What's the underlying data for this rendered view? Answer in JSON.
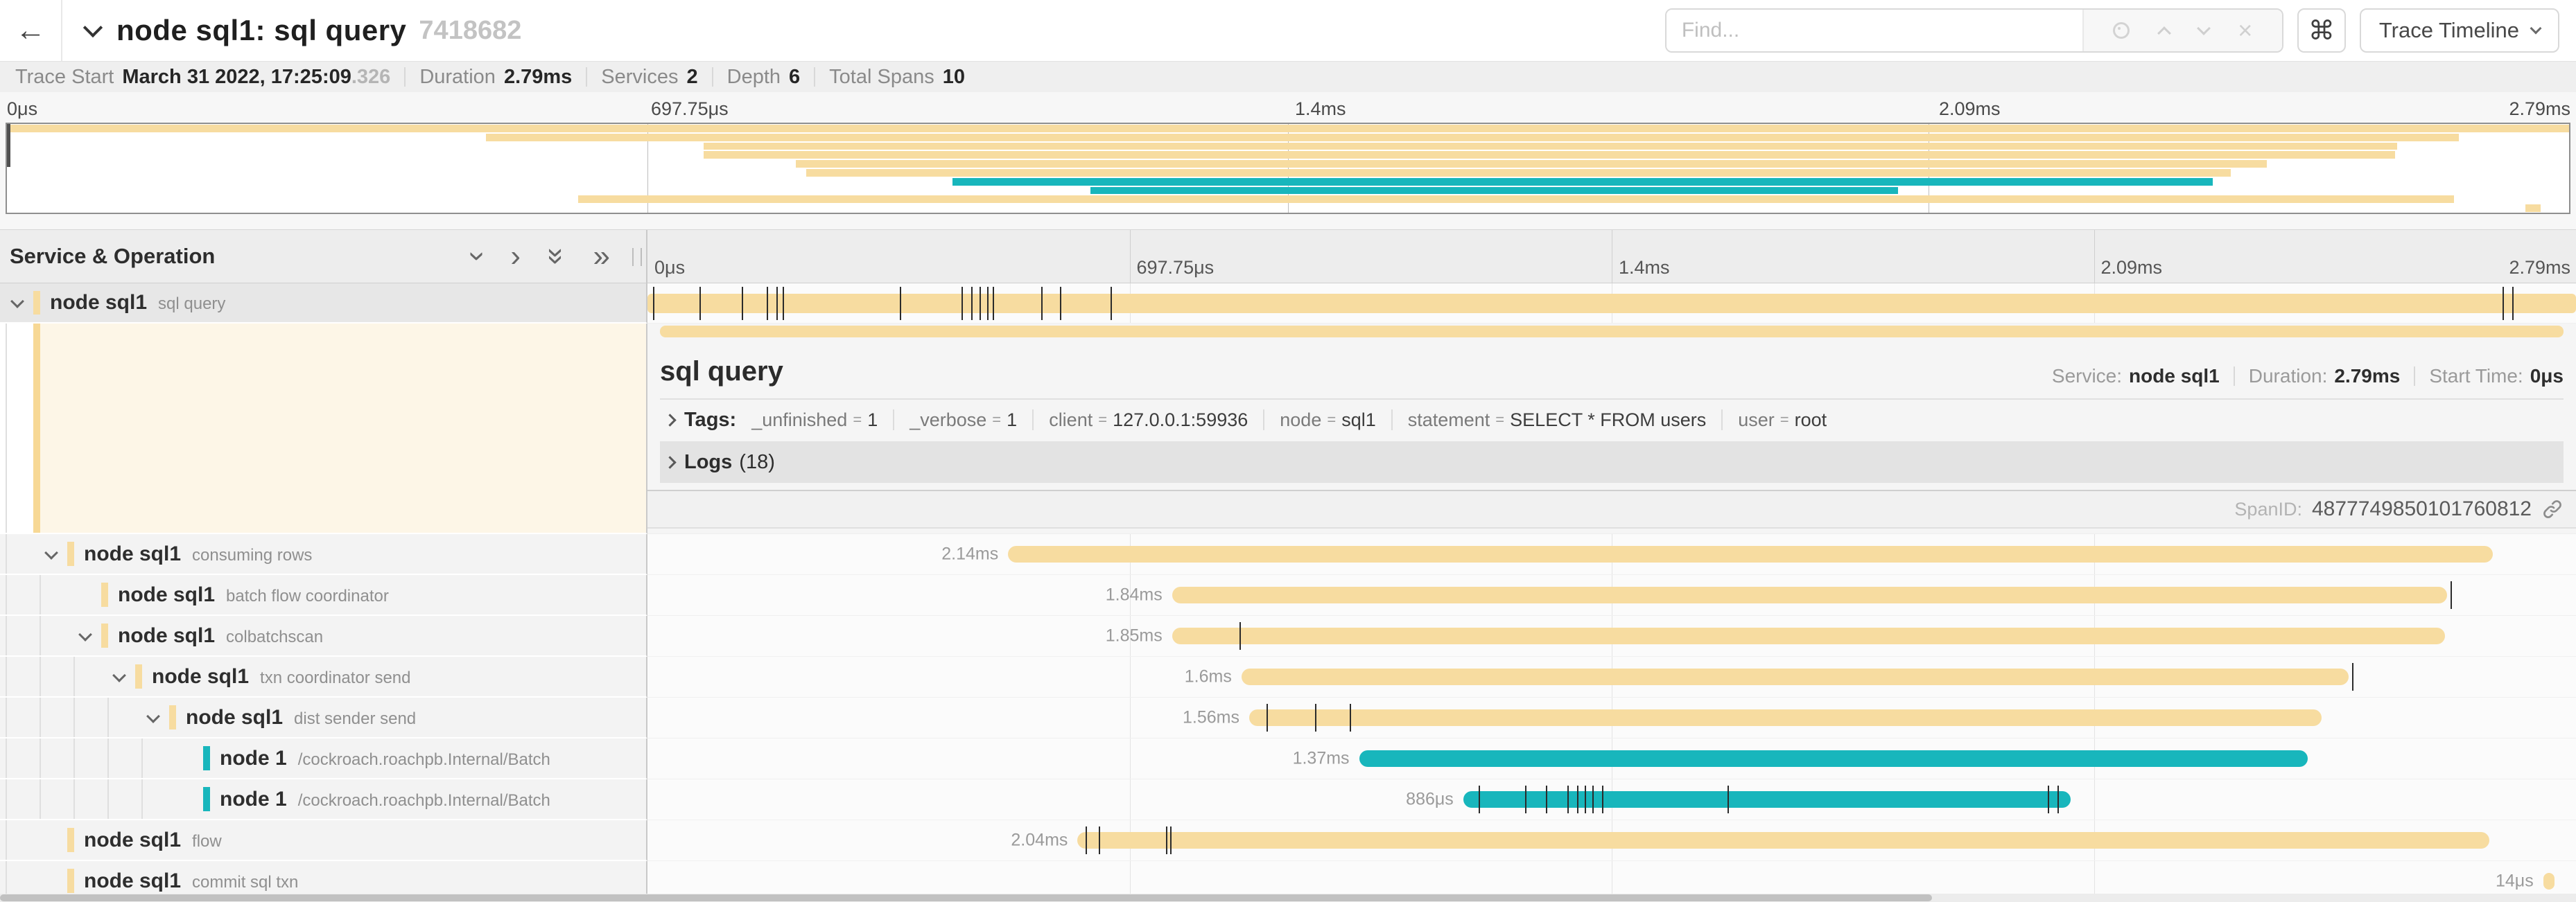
{
  "colors": {
    "yellow": "#F7DCA0",
    "teal": "#18B6BC",
    "accent": "#F7D895"
  },
  "header": {
    "back_icon": "←",
    "title": "node sql1: sql query",
    "trace_id": "7418682",
    "find": {
      "placeholder": "Find..."
    },
    "shortcut_icon": "⌘",
    "view_button": "Trace Timeline"
  },
  "trace_info": {
    "items": [
      {
        "label": "Trace Start",
        "value": "March 31 2022, 17:25:09",
        "suffix": ".326"
      },
      {
        "label": "Duration",
        "value": "2.79ms"
      },
      {
        "label": "Services",
        "value": "2"
      },
      {
        "label": "Depth",
        "value": "6"
      },
      {
        "label": "Total Spans",
        "value": "10"
      }
    ]
  },
  "ruler": {
    "labels": [
      "0μs",
      "697.75μs",
      "1.4ms",
      "2.09ms",
      "2.79ms"
    ],
    "positions": [
      0,
      25,
      50,
      75,
      100
    ]
  },
  "tree_header": {
    "title": "Service & Operation"
  },
  "spans": [
    {
      "service": "node sql1",
      "operation": "sql query",
      "depth": 0,
      "color": "yellow",
      "expandable": true,
      "selected": true,
      "label": "",
      "start": 0,
      "end": 100,
      "ticks": [
        0.3,
        2.7,
        4.9,
        6.2,
        6.7,
        7.0,
        13.1,
        16.3,
        16.8,
        17.2,
        17.6,
        17.9,
        20.4,
        21.4,
        24.0,
        96.2,
        96.7
      ]
    },
    {
      "service": "node sql1",
      "operation": "consuming rows",
      "depth": 1,
      "color": "yellow",
      "expandable": true,
      "selected": false,
      "label": "2.14ms",
      "start": 18.7,
      "end": 95.7,
      "ticks": []
    },
    {
      "service": "node sql1",
      "operation": "batch flow coordinator",
      "depth": 2,
      "color": "yellow",
      "expandable": false,
      "selected": false,
      "label": "1.84ms",
      "start": 27.2,
      "end": 93.3,
      "ticks": [
        93.5
      ]
    },
    {
      "service": "node sql1",
      "operation": "colbatchscan",
      "depth": 2,
      "color": "yellow",
      "expandable": true,
      "selected": false,
      "label": "1.85ms",
      "start": 27.2,
      "end": 93.2,
      "ticks": [
        30.7
      ]
    },
    {
      "service": "node sql1",
      "operation": "txn coordinator send",
      "depth": 3,
      "color": "yellow",
      "expandable": true,
      "selected": false,
      "label": "1.6ms",
      "start": 30.8,
      "end": 88.2,
      "ticks": [
        88.4
      ]
    },
    {
      "service": "node sql1",
      "operation": "dist sender send",
      "depth": 4,
      "color": "yellow",
      "expandable": true,
      "selected": false,
      "label": "1.56ms",
      "start": 31.2,
      "end": 86.8,
      "ticks": [
        32.1,
        34.6,
        36.4
      ]
    },
    {
      "service": "node 1",
      "operation": "/cockroach.roachpb.Internal/Batch",
      "depth": 5,
      "color": "teal",
      "expandable": false,
      "selected": false,
      "label": "1.37ms",
      "start": 36.9,
      "end": 86.1,
      "ticks": []
    },
    {
      "service": "node 1",
      "operation": "/cockroach.roachpb.Internal/Batch",
      "depth": 5,
      "color": "teal",
      "expandable": false,
      "selected": false,
      "label": "886μs",
      "start": 42.3,
      "end": 73.8,
      "ticks": [
        43.1,
        45.5,
        46.6,
        47.7,
        48.2,
        48.6,
        49.0,
        49.5,
        56.0,
        72.6,
        73.1
      ]
    },
    {
      "service": "node sql1",
      "operation": "flow",
      "depth": 1,
      "color": "yellow",
      "expandable": false,
      "selected": false,
      "label": "2.04ms",
      "start": 22.3,
      "end": 95.5,
      "ticks": [
        22.7,
        23.4,
        26.9,
        27.1
      ]
    },
    {
      "service": "node sql1",
      "operation": "commit sql txn",
      "depth": 1,
      "color": "yellow",
      "expandable": false,
      "selected": false,
      "label": "14μs",
      "start": 98.3,
      "end": 98.9,
      "ticks": []
    }
  ],
  "detail": {
    "title": "sql query",
    "info": [
      {
        "label": "Service:",
        "value": "node sql1"
      },
      {
        "label": "Duration:",
        "value": "2.79ms"
      },
      {
        "label": "Start Time:",
        "value": "0μs"
      }
    ],
    "tags_label": "Tags:",
    "tags": [
      {
        "key": "_unfinished",
        "value": "1"
      },
      {
        "key": "_verbose",
        "value": "1"
      },
      {
        "key": "client",
        "value": "127.0.0.1:59936"
      },
      {
        "key": "node",
        "value": "sql1"
      },
      {
        "key": "statement",
        "value": "SELECT * FROM users"
      },
      {
        "key": "user",
        "value": "root"
      }
    ],
    "logs_label": "Logs",
    "logs_count": "(18)",
    "span_id_label": "SpanID:",
    "span_id": "4877749850101760812"
  }
}
